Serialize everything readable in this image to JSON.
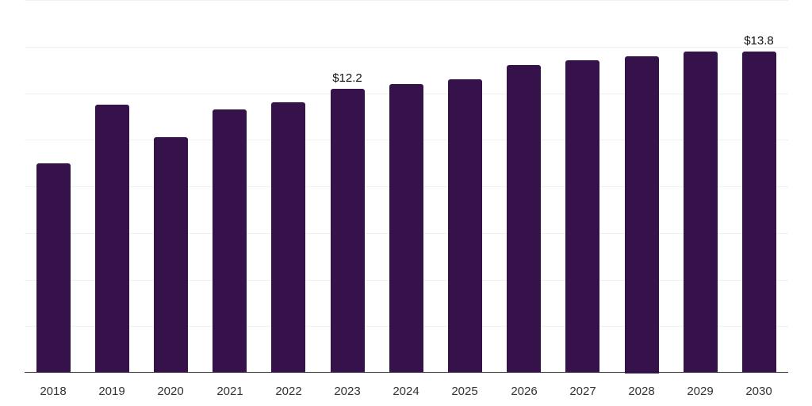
{
  "chart_data": {
    "type": "bar",
    "title": "",
    "xlabel": "",
    "ylabel": "",
    "categories": [
      "2018",
      "2019",
      "2020",
      "2021",
      "2022",
      "2023",
      "2024",
      "2025",
      "2026",
      "2027",
      "2028",
      "2029",
      "2030"
    ],
    "values": [
      9.0,
      11.5,
      10.1,
      11.3,
      11.6,
      12.2,
      12.4,
      12.6,
      13.2,
      13.4,
      13.6,
      13.8,
      13.8
    ],
    "data_labels": [
      {
        "category": "2023",
        "text": "$12.2"
      },
      {
        "category": "2030",
        "text": "$13.8"
      }
    ],
    "ylim": [
      0,
      16
    ],
    "grid": true,
    "legend": null,
    "bar_color": "#36124a"
  }
}
